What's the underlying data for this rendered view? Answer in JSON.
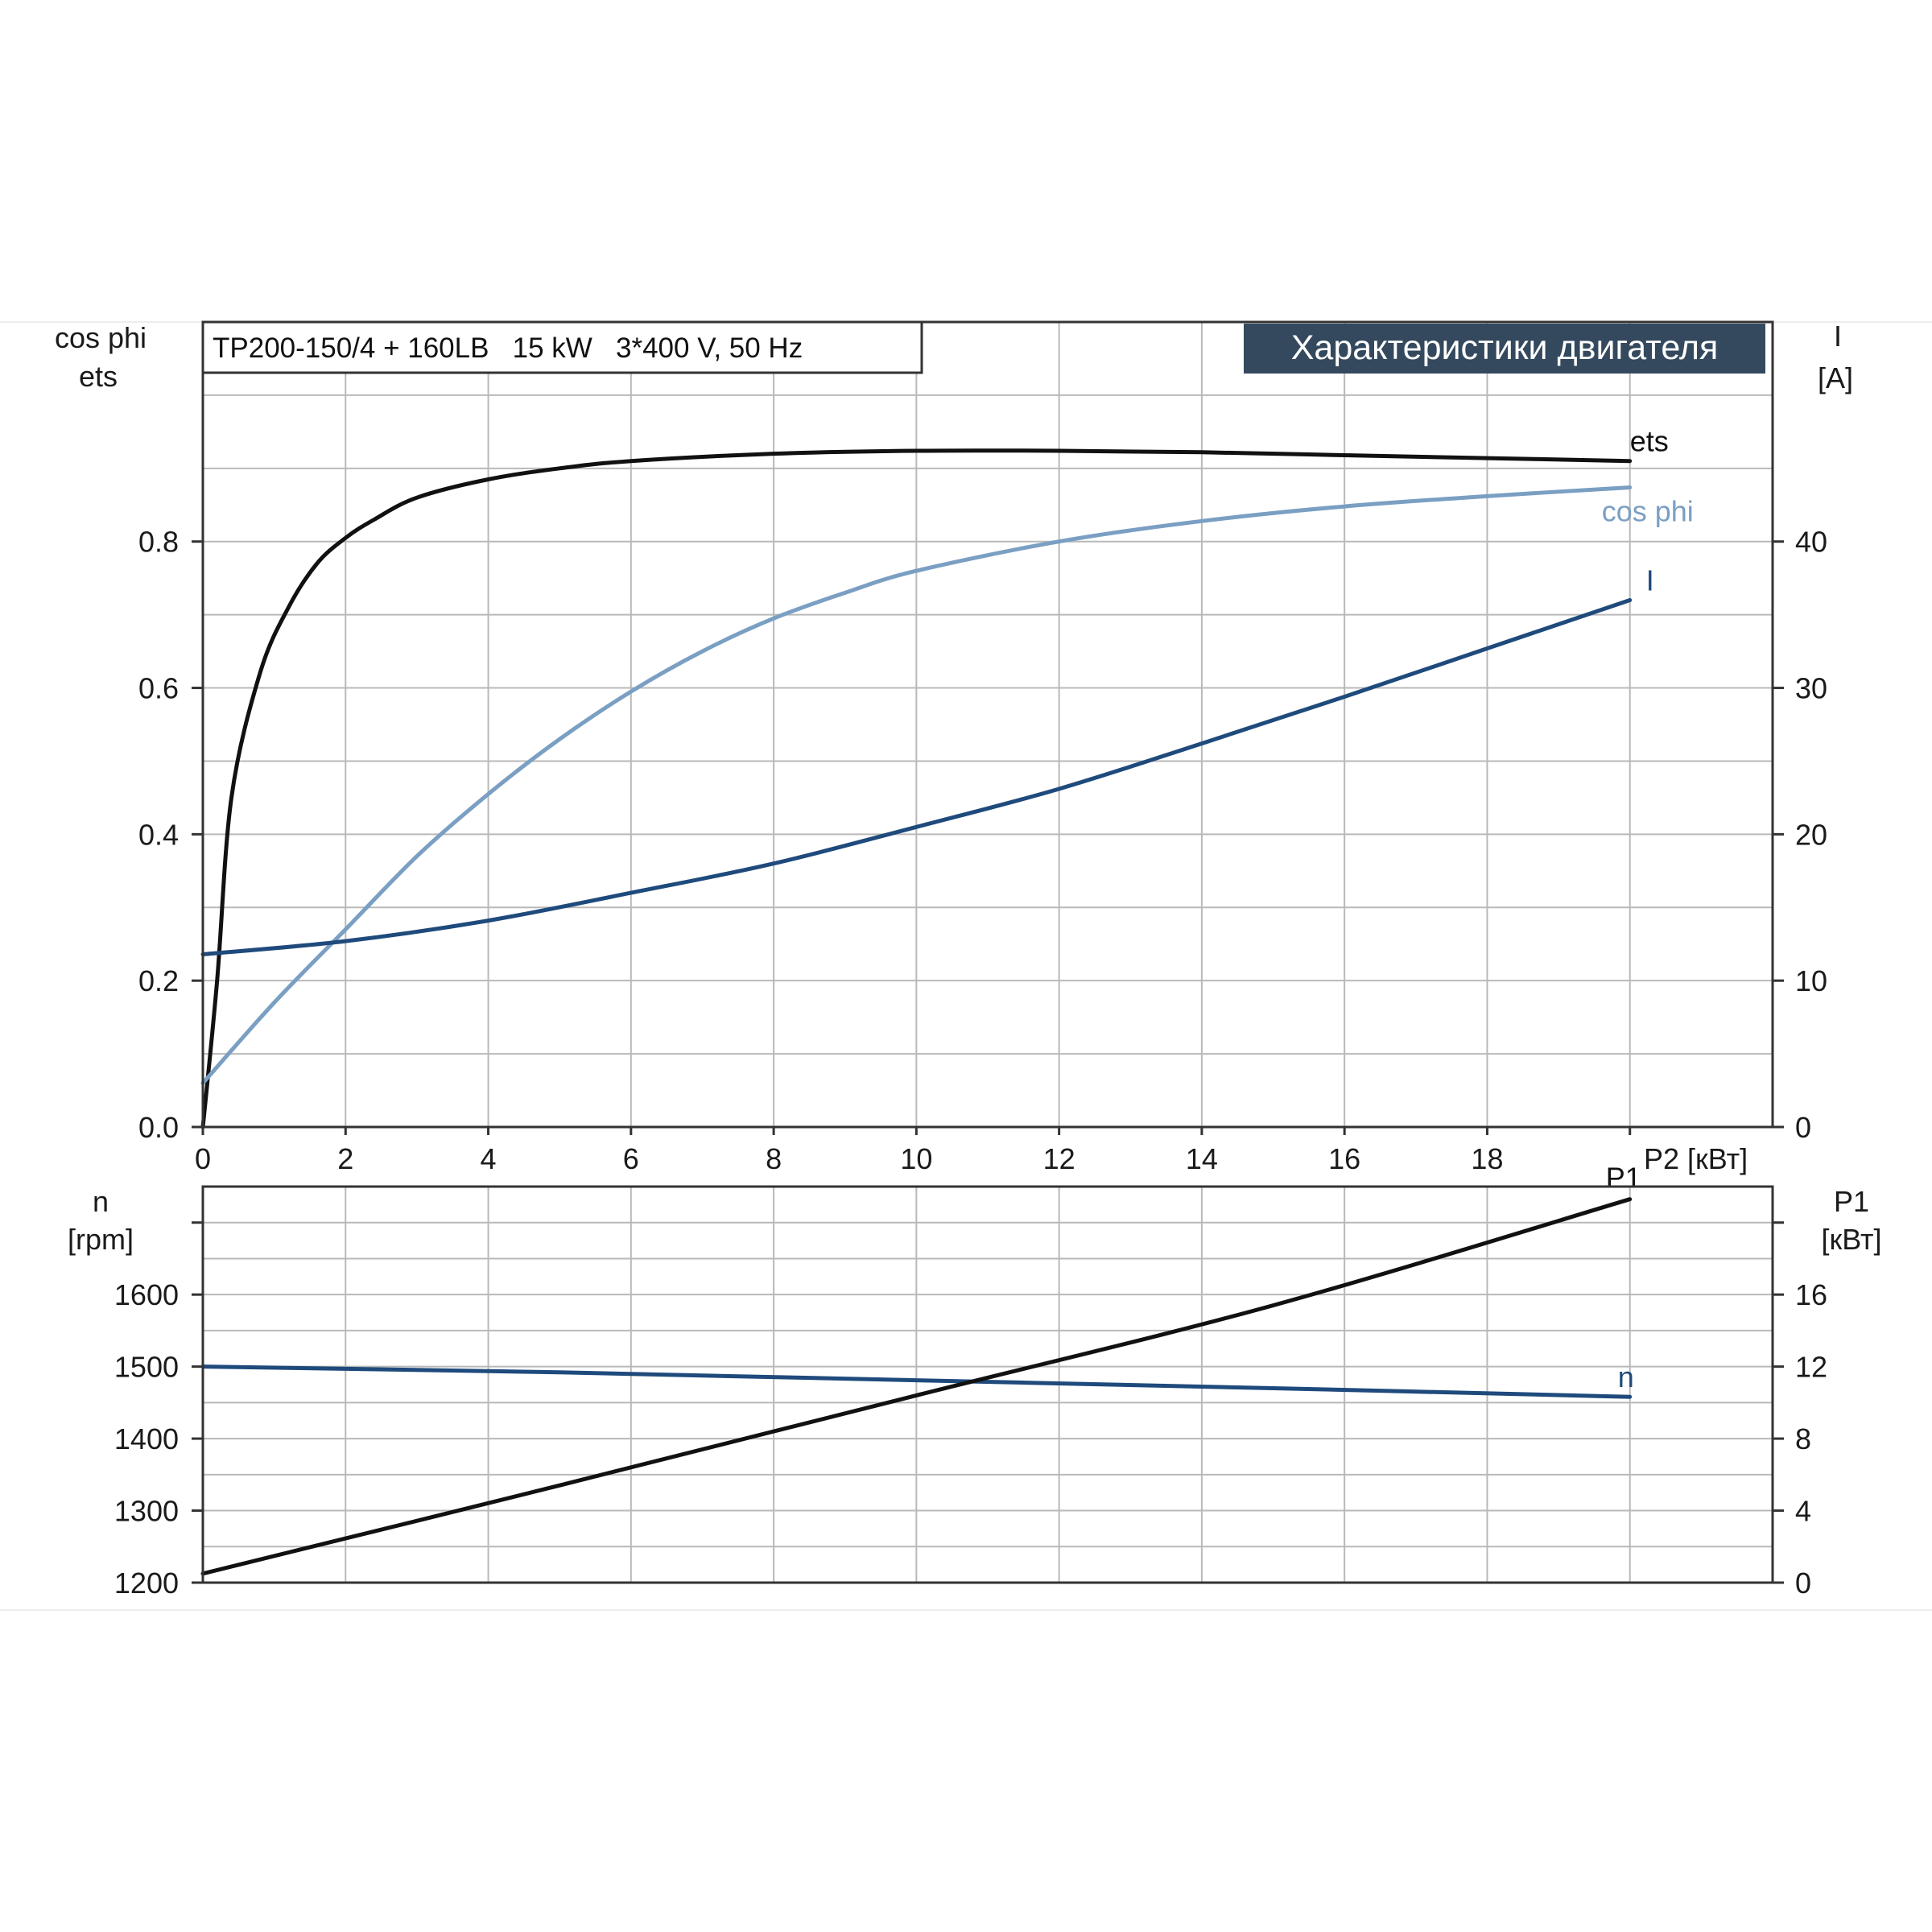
{
  "colors": {
    "ets": "#111111",
    "cos_phi": "#7a9fc3",
    "current": "#1f4a7c",
    "speed": "#1f4a7c",
    "p1": "#111111",
    "title_bg": "#34495e",
    "title_text": "#ffffff"
  },
  "chart_data": [
    {
      "type": "line",
      "title": "Характеристики двигателя",
      "subtitle": "TP200-150/4 + 160LB   15 kW   3*400 V, 50 Hz",
      "xlabel": "P2 [кВт]",
      "xlim": [
        0,
        22
      ],
      "x_ticks": [
        "0",
        "2",
        "4",
        "6",
        "8",
        "10",
        "12",
        "14",
        "16",
        "18"
      ],
      "ylabel_left": [
        "cos phi",
        "ets"
      ],
      "ylim_left": [
        0,
        1.1
      ],
      "y_ticks_left": [
        "0.0",
        "0.2",
        "0.4",
        "0.6",
        "0.8"
      ],
      "ylabel_right": [
        "I",
        "[A]"
      ],
      "ylim_right": [
        0,
        55
      ],
      "y_ticks_right": [
        "0",
        "10",
        "20",
        "30",
        "40"
      ],
      "grid": true,
      "series": [
        {
          "name": "ets",
          "axis": "left",
          "x": [
            0,
            0.2,
            0.4,
            0.8,
            1.2,
            1.6,
            2,
            2.4,
            3,
            4,
            5,
            6,
            8,
            10,
            12,
            14,
            16,
            18,
            20
          ],
          "y": [
            0,
            0.2,
            0.45,
            0.62,
            0.71,
            0.77,
            0.805,
            0.83,
            0.86,
            0.885,
            0.9,
            0.91,
            0.92,
            0.924,
            0.924,
            0.922,
            0.918,
            0.914,
            0.91
          ]
        },
        {
          "name": "cos phi",
          "axis": "left",
          "x": [
            0,
            1,
            2,
            3,
            4,
            5,
            6,
            7,
            8,
            9,
            10,
            12,
            14,
            16,
            18,
            20
          ],
          "y": [
            0.06,
            0.17,
            0.27,
            0.37,
            0.455,
            0.53,
            0.595,
            0.65,
            0.695,
            0.73,
            0.76,
            0.8,
            0.828,
            0.848,
            0.862,
            0.874
          ]
        },
        {
          "name": "I",
          "axis": "right",
          "x": [
            0,
            2,
            4,
            6,
            8,
            10,
            12,
            14,
            16,
            18,
            20
          ],
          "y": [
            11.8,
            12.7,
            14.1,
            16,
            18,
            20.5,
            23.1,
            26.2,
            29.4,
            32.7,
            36
          ]
        }
      ]
    },
    {
      "type": "line",
      "xlim": [
        0,
        22
      ],
      "ylabel_left": [
        "n",
        "[rpm]"
      ],
      "ylim_left": [
        1200,
        1750
      ],
      "y_ticks_left": [
        "1200",
        "1300",
        "1400",
        "1500",
        "1600"
      ],
      "ylabel_right": [
        "P1",
        "[кВт]"
      ],
      "ylim_right": [
        0,
        22
      ],
      "y_ticks_right": [
        "0",
        "4",
        "8",
        "12",
        "16"
      ],
      "grid": true,
      "series": [
        {
          "name": "n",
          "axis": "left",
          "x": [
            0,
            5,
            10,
            15,
            20
          ],
          "y": [
            1500,
            1492,
            1481,
            1470,
            1458
          ]
        },
        {
          "name": "P1",
          "axis": "right",
          "x": [
            0,
            5,
            10,
            15,
            20
          ],
          "y": [
            0.5,
            5.4,
            10.4,
            15.4,
            21.3
          ]
        }
      ]
    }
  ]
}
